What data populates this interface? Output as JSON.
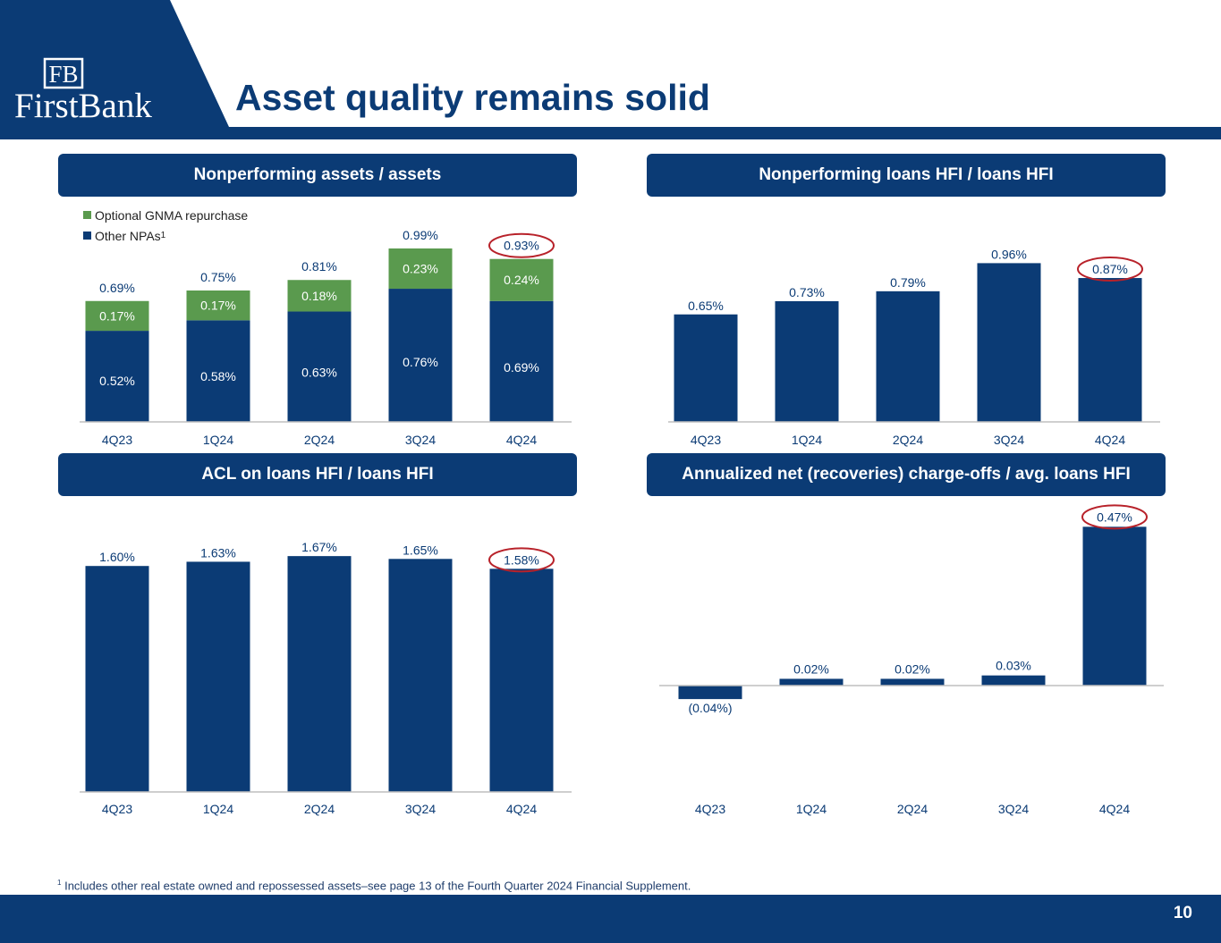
{
  "header": {
    "title": "Asset quality remains solid",
    "logo_initials": "FB",
    "logo_text": "FirstBank"
  },
  "colors": {
    "navy": "#0b3b75",
    "green": "#5a9a4e",
    "highlight_circle": "#b8222a"
  },
  "panels": {
    "npa": "Nonperforming assets / assets",
    "npl": "Nonperforming loans HFI / loans HFI",
    "acl": "ACL on loans HFI / loans HFI",
    "nco": "Annualized net (recoveries) charge-offs / avg. loans HFI"
  },
  "legend": {
    "gnma": "Optional GNMA repurchase",
    "other": "Other NPAs",
    "other_sup": "1"
  },
  "footnote": {
    "marker": "1",
    "text": "Includes other real estate owned and repossessed assets–see page 13 of the Fourth Quarter 2024 Financial Supplement."
  },
  "page_number": "10",
  "chart_data": [
    {
      "id": "npa",
      "type": "bar",
      "stacked": true,
      "categories": [
        "4Q23",
        "1Q24",
        "2Q24",
        "3Q24",
        "4Q24"
      ],
      "series": [
        {
          "name": "Other NPAs",
          "values": [
            0.52,
            0.58,
            0.63,
            0.76,
            0.69
          ],
          "labels": [
            "0.52%",
            "0.58%",
            "0.63%",
            "0.76%",
            "0.69%"
          ]
        },
        {
          "name": "Optional GNMA repurchase",
          "values": [
            0.17,
            0.17,
            0.18,
            0.23,
            0.24
          ],
          "labels": [
            "0.17%",
            "0.17%",
            "0.18%",
            "0.23%",
            "0.24%"
          ]
        }
      ],
      "totals": [
        "0.69%",
        "0.75%",
        "0.81%",
        "0.99%",
        "0.93%"
      ],
      "highlight_index": 4
    },
    {
      "id": "npl",
      "type": "bar",
      "categories": [
        "4Q23",
        "1Q24",
        "2Q24",
        "3Q24",
        "4Q24"
      ],
      "values": [
        0.65,
        0.73,
        0.79,
        0.96,
        0.87
      ],
      "labels": [
        "0.65%",
        "0.73%",
        "0.79%",
        "0.96%",
        "0.87%"
      ],
      "highlight_index": 4
    },
    {
      "id": "acl",
      "type": "bar",
      "categories": [
        "4Q23",
        "1Q24",
        "2Q24",
        "3Q24",
        "4Q24"
      ],
      "values": [
        1.6,
        1.63,
        1.67,
        1.65,
        1.58
      ],
      "labels": [
        "1.60%",
        "1.63%",
        "1.67%",
        "1.65%",
        "1.58%"
      ],
      "highlight_index": 4
    },
    {
      "id": "nco",
      "type": "bar",
      "categories": [
        "4Q23",
        "1Q24",
        "2Q24",
        "3Q24",
        "4Q24"
      ],
      "values": [
        -0.04,
        0.02,
        0.02,
        0.03,
        0.47
      ],
      "labels": [
        "(0.04%)",
        "0.02%",
        "0.02%",
        "0.03%",
        "0.47%"
      ],
      "highlight_index": 4
    }
  ]
}
